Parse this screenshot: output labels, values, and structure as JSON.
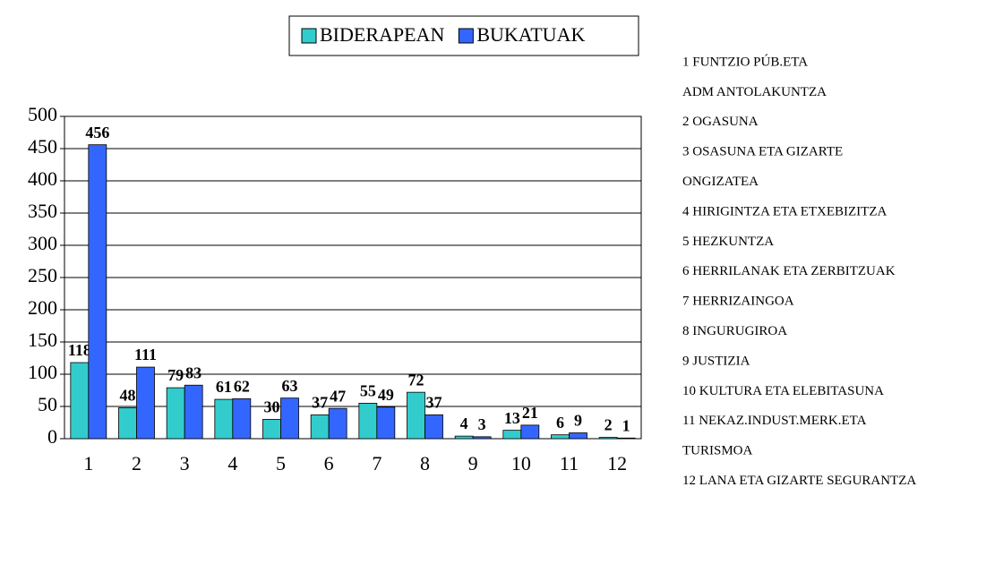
{
  "chart_data": {
    "type": "bar",
    "categories": [
      "1",
      "2",
      "3",
      "4",
      "5",
      "6",
      "7",
      "8",
      "9",
      "10",
      "11",
      "12"
    ],
    "series": [
      {
        "name": "BIDERAPEAN",
        "color": "#33cccc",
        "values": [
          118,
          48,
          79,
          61,
          30,
          37,
          55,
          72,
          4,
          13,
          6,
          2
        ]
      },
      {
        "name": "BUKATUAK",
        "color": "#3366ff",
        "values": [
          456,
          111,
          83,
          62,
          63,
          47,
          49,
          37,
          3,
          21,
          9,
          1
        ]
      }
    ],
    "ylim": [
      0,
      500
    ],
    "yticks": [
      0,
      50,
      100,
      150,
      200,
      250,
      300,
      350,
      400,
      450,
      500
    ],
    "grid": true,
    "legend": "top",
    "side_notes": [
      "1 FUNTZIO PÚB.ETA",
      "ADM ANTOLAKUNTZA",
      "2 OGASUNA",
      "3 OSASUNA ETA GIZARTE",
      "ONGIZATEA",
      "4 HIRIGINTZA ETA ETXEBIZITZA",
      "5 HEZKUNTZA",
      "6 HERRILANAK ETA ZERBITZUAK",
      "7 HERRIZAINGOA",
      "8 INGURUGIROA",
      "9 JUSTIZIA",
      "10 KULTURA ETA ELEBITASUNA",
      "11 NEKAZ.INDUST.MERK.ETA",
      "TURISMOA",
      "12 LANA ETA GIZARTE SEGURANTZA"
    ]
  }
}
